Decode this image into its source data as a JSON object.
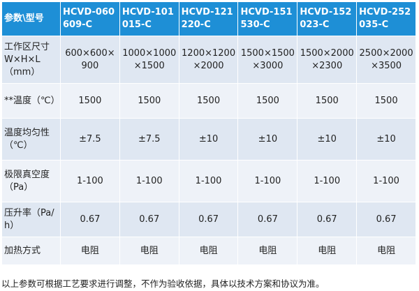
{
  "table": {
    "header": [
      "参数\\型号",
      "HCVD-060609-C",
      "HCVD-101015-C",
      "HCVD-121220-C",
      "HCVD-151530-C",
      "HCVD-152023-C",
      "HCVD-252035-C"
    ],
    "rows": [
      [
        "工作区尺寸W×H×L（mm）",
        "600×600×900",
        "1000×1000×1500",
        "1200×1200×2000",
        "1500×1500×3000",
        "1500×2000×2300",
        "2500×2000×3500"
      ],
      [
        "**温度（℃）",
        "1500",
        "1500",
        "1500",
        "1500",
        "1500",
        "1500"
      ],
      [
        "温度均匀性（℃）",
        "±7.5",
        "±7.5",
        "±10",
        "±10",
        "±10",
        "±10"
      ],
      [
        "极限真空度（Pa）",
        "1-100",
        "1-100",
        "1-100",
        "1-100",
        "1-100",
        "1-100"
      ],
      [
        "压升率（Pa/h）",
        "0.67",
        "0.67",
        "0.67",
        "0.67",
        "0.67",
        "0.67"
      ],
      [
        "加热方式",
        "电阻",
        "电阻",
        "电阻",
        "电阻",
        "电阻",
        "电阻"
      ]
    ]
  },
  "footer": "以上参数可根据工艺要求进行调整，不作为验收依据，具体以技术方案和协议为准。"
}
